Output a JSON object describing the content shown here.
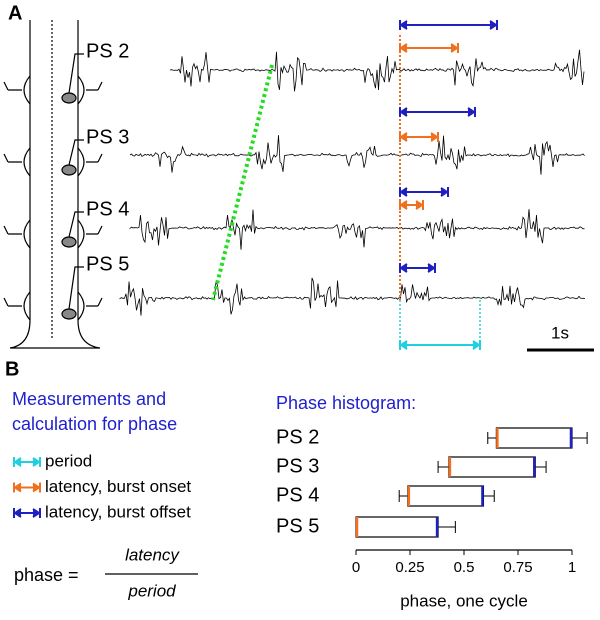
{
  "panel_a": {
    "label": "A",
    "traces": [
      "PS 2",
      "PS 3",
      "PS 4",
      "PS 5"
    ],
    "scale_bar": "1s"
  },
  "panel_b": {
    "label": "B",
    "heading": [
      "Measurements and",
      "calculation for phase"
    ],
    "legend": [
      "period",
      "latency, burst onset",
      "latency, burst offset"
    ],
    "formula": {
      "lhs": "phase =",
      "numerator": "latency",
      "denominator": "period"
    }
  },
  "chart_data": {
    "type": "range_bar",
    "title": "Phase histogram:",
    "categories": [
      "PS 2",
      "PS 3",
      "PS 4",
      "PS 5"
    ],
    "series": [
      {
        "name": "latency, burst onset",
        "color": "#f07020",
        "values": [
          0.65,
          0.43,
          0.24,
          0
        ],
        "errors": [
          0.04,
          0.05,
          0.04,
          null
        ]
      },
      {
        "name": "latency, burst offset",
        "color": "#2020c0",
        "values": [
          1.0,
          0.83,
          0.59,
          0.38
        ],
        "errors": [
          0.07,
          0.05,
          0.05,
          0.08
        ]
      }
    ],
    "xlim": [
      0,
      1
    ],
    "xticks": [
      0,
      0.25,
      0.5,
      0.75,
      1
    ],
    "xlabel": "phase, one cycle"
  }
}
